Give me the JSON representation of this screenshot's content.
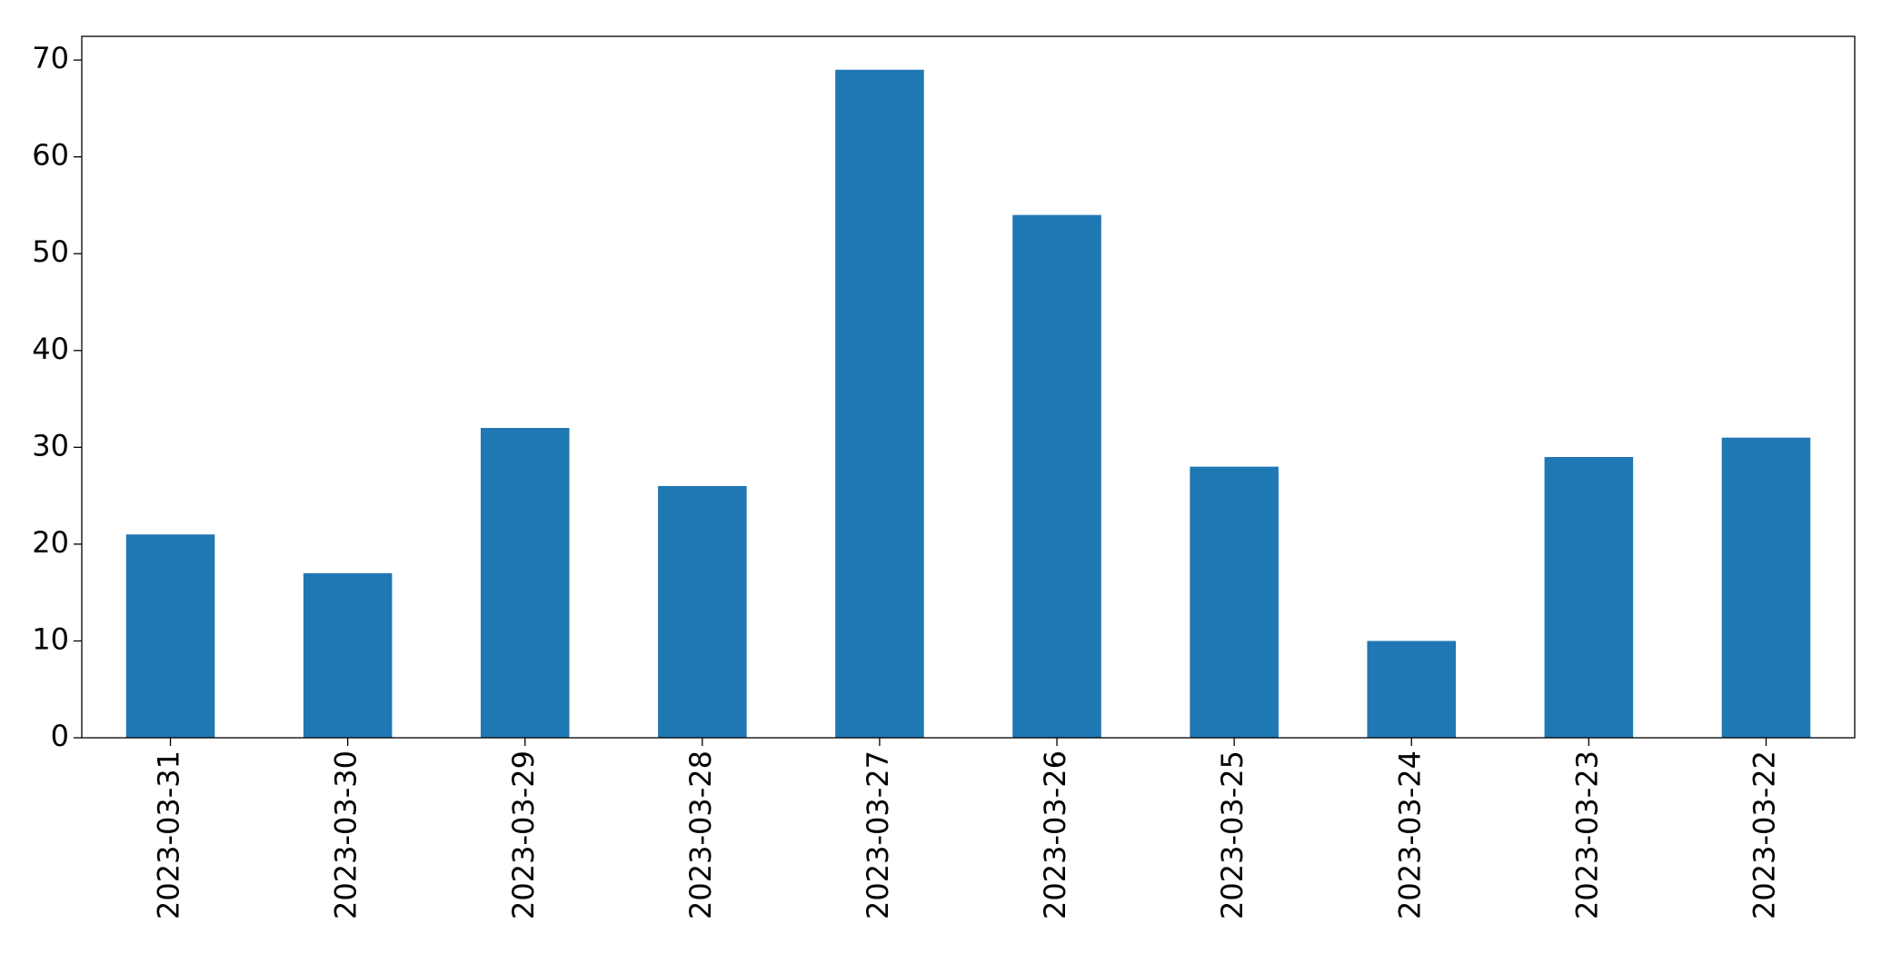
{
  "chart_data": {
    "type": "bar",
    "categories": [
      "2023-03-31",
      "2023-03-30",
      "2023-03-29",
      "2023-03-28",
      "2023-03-27",
      "2023-03-26",
      "2023-03-25",
      "2023-03-24",
      "2023-03-23",
      "2023-03-22"
    ],
    "values": [
      21,
      17,
      32,
      26,
      69,
      54,
      28,
      10,
      29,
      31
    ],
    "color": "#1f77b4",
    "ylim": [
      0,
      72.45
    ],
    "yticks": [
      0,
      10,
      20,
      30,
      40,
      50,
      60,
      70
    ],
    "grid": false
  }
}
